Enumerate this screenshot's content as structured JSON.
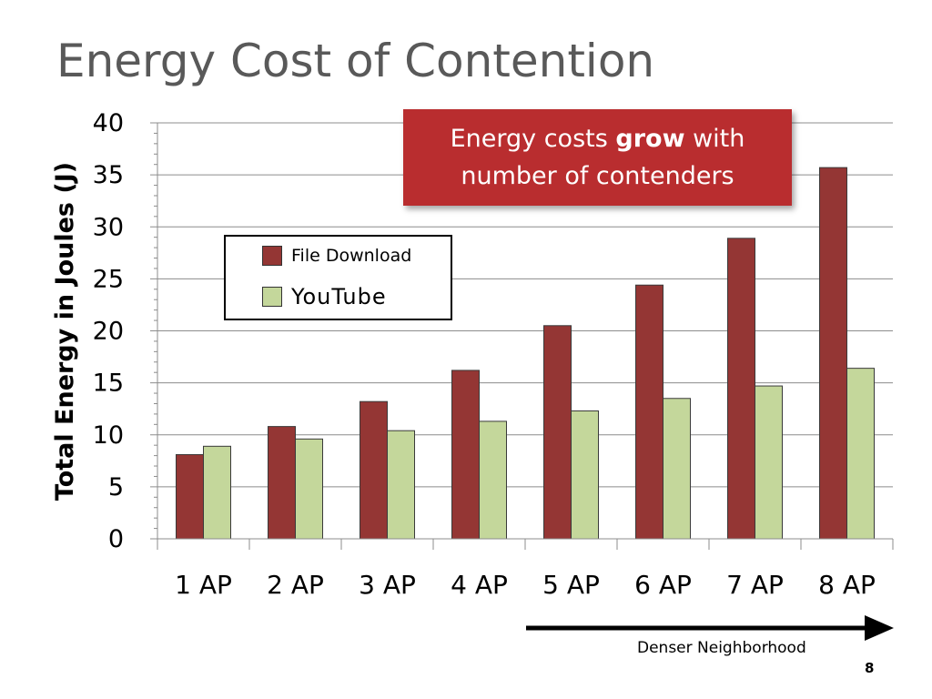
{
  "slide": {
    "title": "Energy Cost of Contention",
    "page_number": "8"
  },
  "callout": {
    "line1_pre": "Energy costs ",
    "line1_bold": "grow",
    "line1_post": " with",
    "line2": "number of contenders"
  },
  "annotation": {
    "arrow_label": "Denser Neighborhood"
  },
  "colors": {
    "file_download": "#943634",
    "youtube": "#c4d79b",
    "callout_bg": "#b92d2f",
    "title": "#595959"
  },
  "chart_data": {
    "type": "bar",
    "title": "",
    "xlabel": "",
    "ylabel": "Total Energy in Joules (J)",
    "ylim": [
      0,
      40
    ],
    "yticks": [
      0,
      5,
      10,
      15,
      20,
      25,
      30,
      35,
      40
    ],
    "grid": true,
    "legend_position": "upper-left",
    "categories": [
      "1 AP",
      "2 AP",
      "3 AP",
      "4 AP",
      "5 AP",
      "6 AP",
      "7 AP",
      "8 AP"
    ],
    "series": [
      {
        "name": "File Download",
        "values": [
          8.1,
          10.8,
          13.2,
          16.2,
          20.5,
          24.4,
          28.9,
          35.7
        ]
      },
      {
        "name": "YouTube",
        "values": [
          8.9,
          9.6,
          10.4,
          11.3,
          12.3,
          13.5,
          14.7,
          16.4
        ]
      }
    ]
  }
}
